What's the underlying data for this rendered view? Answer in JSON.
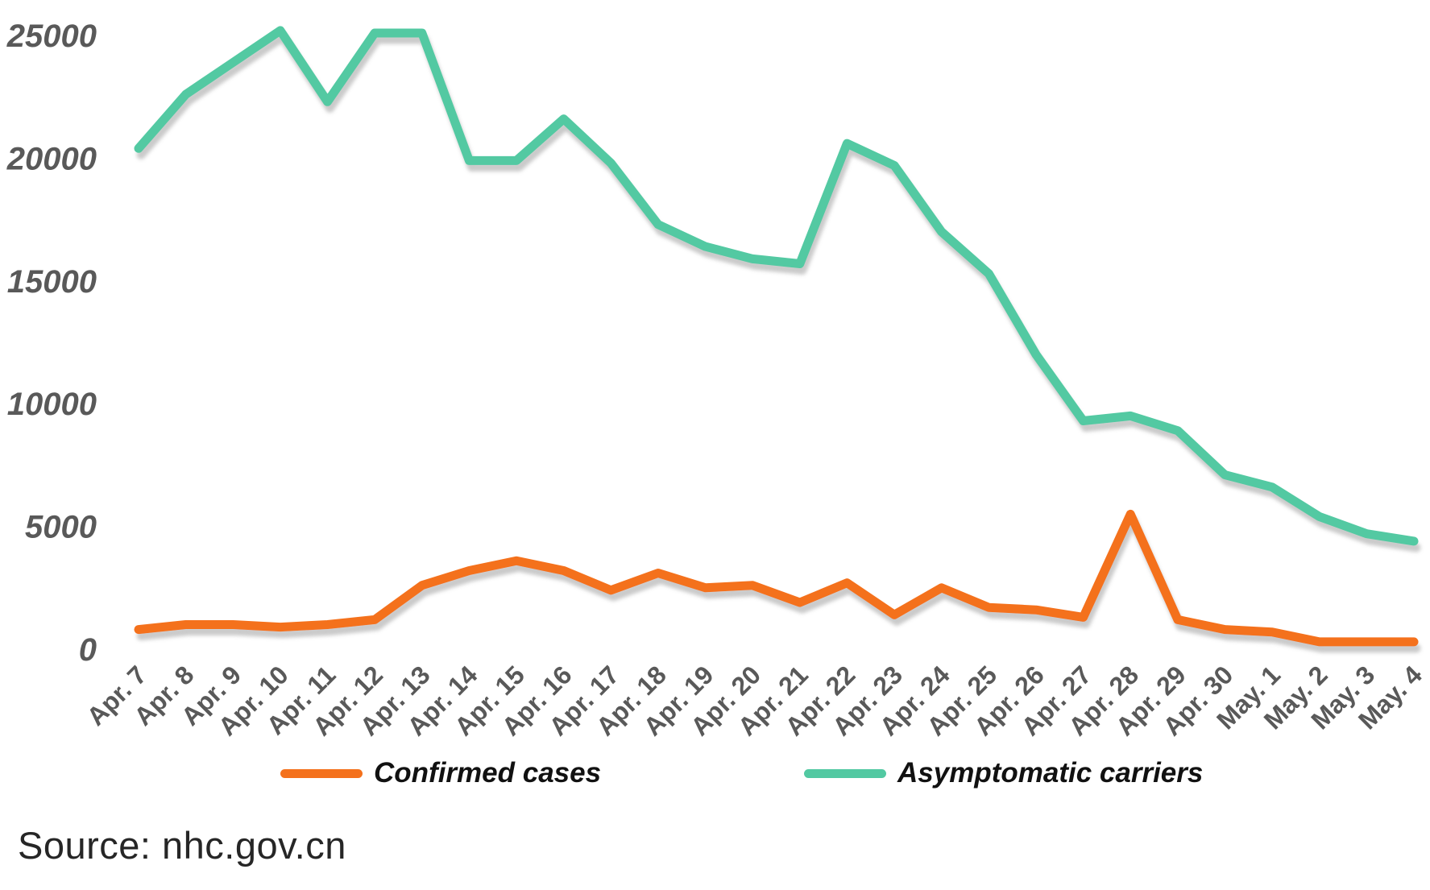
{
  "chart_data": {
    "type": "line",
    "categories": [
      "Apr. 7",
      "Apr. 8",
      "Apr. 9",
      "Apr. 10",
      "Apr. 11",
      "Apr. 12",
      "Apr. 13",
      "Apr. 14",
      "Apr. 15",
      "Apr. 16",
      "Apr. 17",
      "Apr. 18",
      "Apr. 19",
      "Apr. 20",
      "Apr. 21",
      "Apr. 22",
      "Apr. 23",
      "Apr. 24",
      "Apr. 25",
      "Apr. 26",
      "Apr. 27",
      "Apr. 28",
      "Apr. 29",
      "Apr. 30",
      "May. 1",
      "May. 2",
      "May. 3",
      "May. 4"
    ],
    "series": [
      {
        "name": "Confirmed cases",
        "color": "#F4711C",
        "values": [
          800,
          1000,
          1000,
          900,
          1000,
          1200,
          2600,
          3200,
          3600,
          3200,
          2400,
          3100,
          2500,
          2600,
          1900,
          2700,
          1400,
          2500,
          1700,
          1600,
          1300,
          5500,
          1200,
          800,
          700,
          300,
          300,
          300
        ]
      },
      {
        "name": "Asymptomatic carriers",
        "color": "#52C9A2",
        "values": [
          20400,
          22600,
          23900,
          25200,
          22300,
          25100,
          25100,
          19900,
          19900,
          21600,
          19800,
          17300,
          16400,
          15900,
          15700,
          20600,
          19700,
          17000,
          15300,
          12000,
          9300,
          9500,
          8900,
          7100,
          6600,
          5400,
          4700,
          4400
        ]
      }
    ],
    "title": "",
    "xlabel": "",
    "ylabel": "",
    "ylim": [
      0,
      25000
    ],
    "y_ticks": [
      0,
      5000,
      10000,
      15000,
      20000,
      25000
    ],
    "grid": true,
    "legend_position": "bottom",
    "gridline_color": "#e4e4e4",
    "axis_label_color": "#595959"
  },
  "legend": {
    "confirmed_label": "Confirmed cases",
    "asymptomatic_label": "Asymptomatic carriers"
  },
  "source": {
    "text": "Source: nhc.gov.cn"
  }
}
